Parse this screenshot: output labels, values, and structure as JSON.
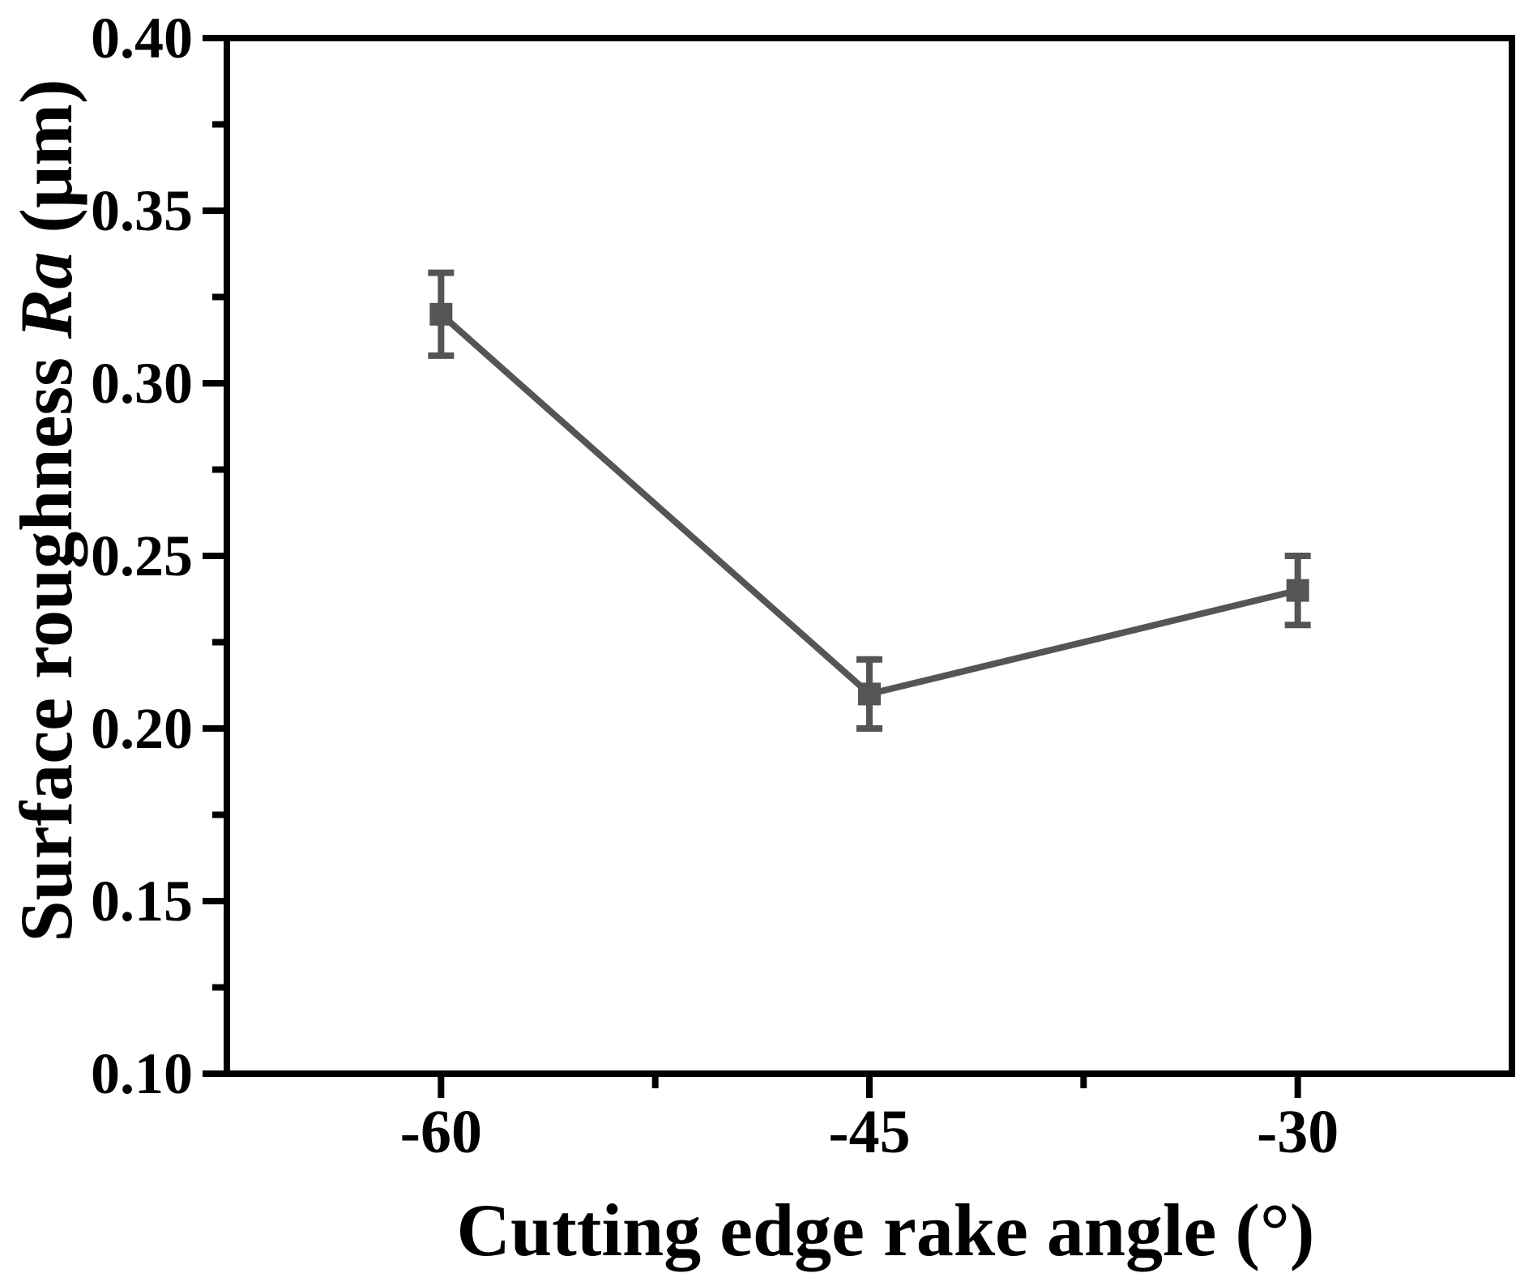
{
  "chart_data": {
    "type": "line",
    "title": "",
    "xlabel": "Cutting edge rake angle (°)",
    "ylabel": "Surface roughness Ra (μm)",
    "ylabel_prefix": "Surface roughness ",
    "ylabel_italic": "Ra",
    "ylabel_suffix": " (μm)",
    "x": [
      -60,
      -45,
      -30
    ],
    "series": [
      {
        "name": "Surface roughness Ra",
        "values": [
          0.32,
          0.21,
          0.24
        ],
        "errors": [
          0.012,
          0.01,
          0.01
        ]
      }
    ],
    "xlim": [
      -67.5,
      -22.5
    ],
    "ylim": [
      0.1,
      0.4
    ],
    "x_major_ticks": [
      -60,
      -45,
      -30
    ],
    "x_tick_labels": [
      "-60",
      "-45",
      "-30"
    ],
    "x_minor_ticks": [
      -52.5,
      -37.5
    ],
    "y_major_ticks": [
      0.1,
      0.15,
      0.2,
      0.25,
      0.3,
      0.35,
      0.4
    ],
    "y_tick_labels": [
      "0.10",
      "0.15",
      "0.20",
      "0.25",
      "0.30",
      "0.35",
      "0.40"
    ],
    "y_minor_ticks": [
      0.125,
      0.175,
      0.225,
      0.275,
      0.325,
      0.375
    ],
    "grid": false,
    "legend": "none",
    "marker": "square",
    "colors": {
      "series": "#555555",
      "axis": "#000000",
      "text": "#000000",
      "background": "#ffffff"
    }
  }
}
